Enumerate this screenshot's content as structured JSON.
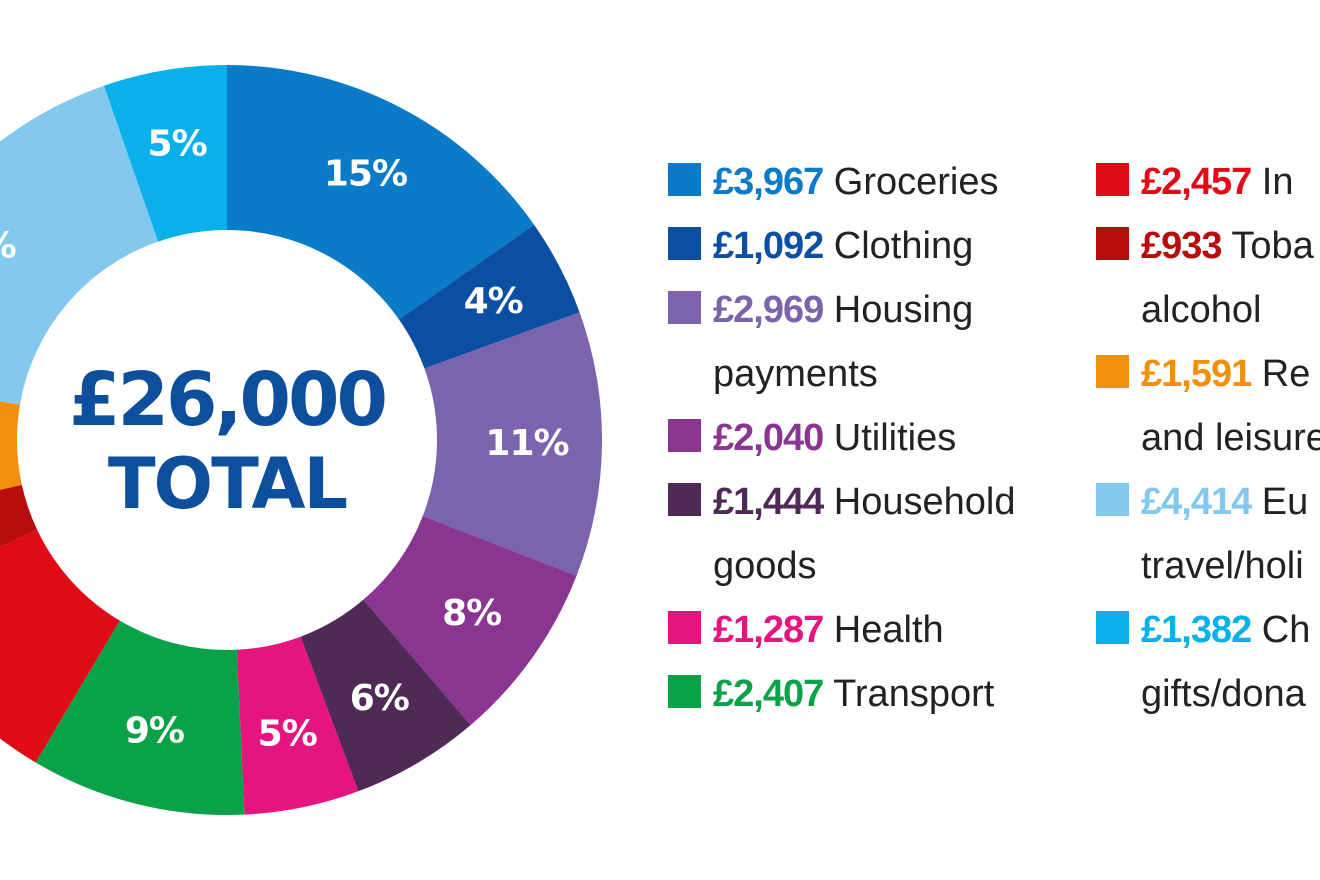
{
  "total": {
    "amount": "£26,000",
    "label": "TOTAL"
  },
  "chart_data": {
    "type": "pie",
    "total": 26000,
    "slices": [
      {
        "name": "Groceries",
        "value": 3967,
        "label": "15%",
        "color": "#0a7bc9"
      },
      {
        "name": "Clothing",
        "value": 1092,
        "label": "4%",
        "color": "#0b4fa3"
      },
      {
        "name": "Housing payments",
        "value": 2969,
        "label": "11%",
        "color": "#7b64ad"
      },
      {
        "name": "Utilities",
        "value": 2040,
        "label": "8%",
        "color": "#8a3590"
      },
      {
        "name": "Household goods",
        "value": 1444,
        "label": "6%",
        "color": "#4f2a56"
      },
      {
        "name": "Health",
        "value": 1287,
        "label": "5%",
        "color": "#e6147f"
      },
      {
        "name": "Transport",
        "value": 2407,
        "label": "9%",
        "color": "#0aa249"
      },
      {
        "name": "Insurance",
        "value": 2457,
        "label": "",
        "color": "#e10a17"
      },
      {
        "name": "Tobacco/alcohol",
        "value": 933,
        "label": "",
        "color": "#b80d0d"
      },
      {
        "name": "Recreation and leisure",
        "value": 1591,
        "label": "",
        "color": "#f2900c"
      },
      {
        "name": "Eu travel/holidays",
        "value": 4414,
        "label": "%",
        "color": "#82c8ef"
      },
      {
        "name": "Charity gifts/donations",
        "value": 1382,
        "label": "5%",
        "color": "#0ab0ea"
      }
    ]
  },
  "legend": {
    "left": [
      {
        "amount": "£3,967",
        "text": "Groceries",
        "continuation": "",
        "color": "#0a7bc9"
      },
      {
        "amount": "£1,092",
        "text": "Clothing",
        "continuation": "",
        "color": "#0b4fa3"
      },
      {
        "amount": "£2,969",
        "text": "Housing",
        "continuation": "payments",
        "color": "#7b64ad"
      },
      {
        "amount": "£2,040",
        "text": "Utilities",
        "continuation": "",
        "color": "#8a3590"
      },
      {
        "amount": "£1,444",
        "text": "Household",
        "continuation": "goods",
        "color": "#4f2a56"
      },
      {
        "amount": "£1,287",
        "text": "Health",
        "continuation": "",
        "color": "#e6147f"
      },
      {
        "amount": "£2,407",
        "text": "Transport",
        "continuation": "",
        "color": "#0aa249"
      }
    ],
    "right": [
      {
        "amount": "£2,457",
        "text": "In",
        "continuation": "",
        "color": "#e10a17"
      },
      {
        "amount": "£933",
        "text": "Toba",
        "continuation": "alcohol",
        "color": "#b80d0d"
      },
      {
        "amount": "£1,591",
        "text": "Re",
        "continuation": "and leisure",
        "color": "#f2900c"
      },
      {
        "amount": "£4,414",
        "text": "Eu",
        "continuation": "travel/holi",
        "color": "#82c8ef"
      },
      {
        "amount": "£1,382",
        "text": "Ch",
        "continuation": "gifts/dona",
        "color": "#0ab0ea"
      }
    ]
  }
}
